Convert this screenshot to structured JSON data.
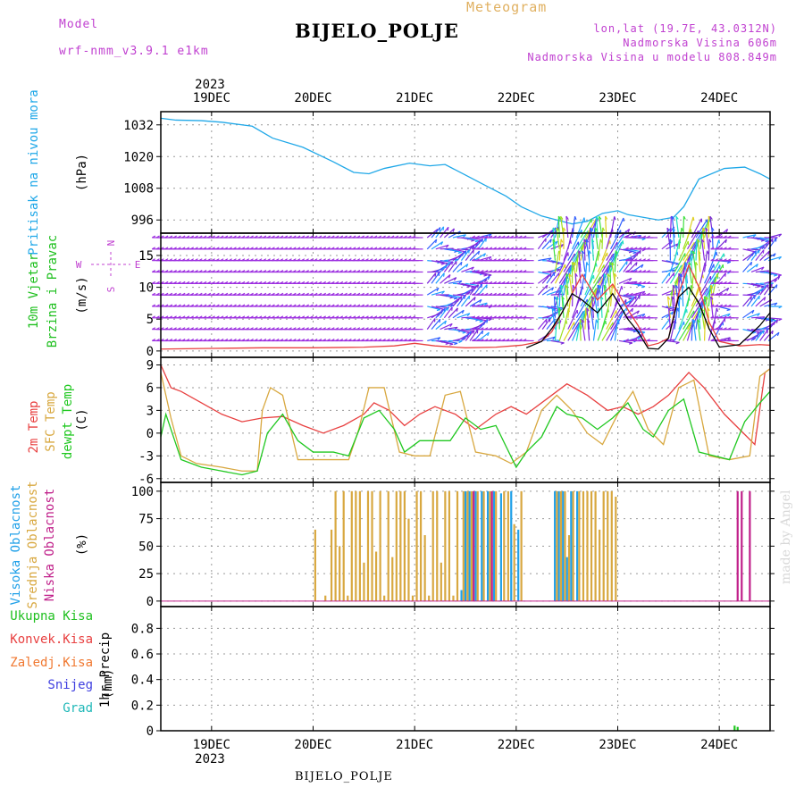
{
  "header": {
    "model_label": "Model",
    "model_name": "wrf-nmm_v3.9.1 e1km",
    "chart_kind": "Meteogram",
    "station": "BIJELO_POLJE",
    "lonlat": "lon,lat (19.7E, 43.0312N)",
    "altitude": "Nadmorska Visina 606m",
    "model_altitude": "Nadmorska Visina u modelu 808.849m",
    "footer_station": "BIJELO_POLJE",
    "watermark": "made by Angel"
  },
  "colors": {
    "magenta": "#c040d0",
    "gold": "#e0b060",
    "pressure": "#20a8e8",
    "wind_title": "#20c020",
    "temp2m": "#e84040",
    "sfc": "#d8a840",
    "dew": "#20c820",
    "cloud_high": "#20a0e8",
    "cloud_mid": "#d8a840",
    "cloud_low": "#c0208a"
  },
  "time_axis": {
    "year": "2023",
    "days": [
      "19DEC",
      "20DEC",
      "21DEC",
      "22DEC",
      "23DEC",
      "24DEC"
    ],
    "day_positions": [
      0.5,
      1.5,
      2.5,
      3.5,
      4.5,
      5.5
    ],
    "range": [
      0,
      6
    ]
  },
  "chart_data": [
    {
      "type": "line",
      "ylabel_title": "Pritisak na nivou mora",
      "ylabel_units": "(hPa)",
      "yticks": [
        996,
        1008,
        1020,
        1032
      ],
      "ylim": [
        991,
        1037
      ],
      "grid": true,
      "series": [
        {
          "color_key": "pressure",
          "x": [
            0,
            0.15,
            0.4,
            0.6,
            0.9,
            1.1,
            1.4,
            1.7,
            1.9,
            2.05,
            2.2,
            2.45,
            2.65,
            2.8,
            3.0,
            3.2,
            3.4,
            3.55,
            3.75,
            3.95,
            4.05,
            4.2,
            4.35,
            4.5,
            4.6,
            4.75,
            4.9,
            5.05,
            5.15,
            5.3,
            5.55,
            5.75,
            5.9,
            6.0
          ],
          "y": [
            1034.5,
            1033.8,
            1033.6,
            1033.0,
            1031.5,
            1027.0,
            1023.5,
            1018.0,
            1014.0,
            1013.5,
            1015.5,
            1017.5,
            1016.5,
            1017.0,
            1013.0,
            1009.0,
            1005.0,
            1001.0,
            997.5,
            995.5,
            994.5,
            995.5,
            998.5,
            999.5,
            998.0,
            997.0,
            996.0,
            997.0,
            1001.0,
            1011.5,
            1015.5,
            1016.0,
            1013.5,
            1011.5
          ]
        }
      ]
    },
    {
      "type": "line",
      "ylabel_title": "10m Vjetar Brzina i Pravac",
      "ylabel_units": "(m/s)",
      "compass": [
        "N",
        "E",
        "S",
        "W"
      ],
      "yticks": [
        0,
        5,
        10,
        15
      ],
      "ylim": [
        -1,
        18.5
      ],
      "grid": true,
      "series": [
        {
          "color_key": "temp2m",
          "name": "",
          "x": [
            0,
            0.5,
            1.0,
            1.5,
            2.0,
            2.3,
            2.5,
            2.7,
            3.0,
            3.3,
            3.55,
            3.75,
            3.85,
            3.95,
            4.05,
            4.15,
            4.3,
            4.45,
            4.6,
            4.7,
            4.8,
            4.9,
            5.0,
            5.1,
            5.2,
            5.3,
            5.4,
            5.5,
            5.7,
            5.9,
            6.0
          ],
          "y": [
            0.3,
            0.4,
            0.5,
            0.5,
            0.6,
            0.8,
            1.2,
            0.8,
            0.5,
            0.6,
            0.9,
            1.5,
            3.0,
            6.0,
            9.0,
            12.0,
            8.0,
            10.5,
            6.5,
            4.0,
            0.8,
            1.2,
            2.0,
            9.0,
            13.5,
            10.0,
            4.5,
            1.5,
            0.8,
            1.0,
            0.9
          ]
        },
        {
          "color_key": "black",
          "name": "",
          "x": [
            3.6,
            3.75,
            3.85,
            3.95,
            4.05,
            4.15,
            4.3,
            4.45,
            4.6,
            4.7,
            4.8,
            4.9,
            5.0,
            5.1,
            5.2,
            5.3,
            5.4,
            5.5,
            5.7,
            5.9,
            6.0
          ],
          "y": [
            0.5,
            1.5,
            3.5,
            6.0,
            9.0,
            8.0,
            6.0,
            9.0,
            5.0,
            3.0,
            0.4,
            0.3,
            2.0,
            8.5,
            10.0,
            7.5,
            3.5,
            0.6,
            1.0,
            4.0,
            6.0
          ]
        }
      ],
      "arrows": {
        "levels": [
          17.8,
          16.0,
          14.2,
          12.4,
          10.6,
          8.8,
          7.0,
          5.2,
          3.4,
          1.6
        ],
        "spacing_days": 0.042
      }
    },
    {
      "type": "line",
      "ylabel_title": [
        "2m Temp",
        "SFC Temp",
        "dewpt Temp"
      ],
      "ylabel_units": "(C)",
      "yticks": [
        -6,
        -3,
        0,
        3,
        6,
        9
      ],
      "ylim": [
        -6.5,
        10
      ],
      "grid": true,
      "series": [
        {
          "name": "2m Temp",
          "color_key": "temp2m",
          "x": [
            0,
            0.1,
            0.2,
            0.4,
            0.6,
            0.8,
            1.0,
            1.2,
            1.4,
            1.6,
            1.8,
            2.0,
            2.1,
            2.25,
            2.4,
            2.55,
            2.7,
            2.9,
            3.1,
            3.3,
            3.45,
            3.6,
            3.8,
            4.0,
            4.2,
            4.4,
            4.55,
            4.7,
            4.85,
            5.0,
            5.2,
            5.35,
            5.55,
            5.7,
            5.85,
            5.95,
            6.0
          ],
          "y": [
            9.0,
            6.0,
            5.5,
            4.0,
            2.5,
            1.5,
            2.0,
            2.2,
            1.0,
            0.0,
            1.0,
            2.5,
            4.0,
            3.0,
            1.0,
            2.5,
            3.5,
            2.5,
            0.5,
            2.5,
            3.5,
            2.5,
            4.5,
            6.5,
            5.0,
            3.0,
            3.5,
            2.5,
            3.5,
            5.0,
            8.0,
            6.0,
            2.5,
            0.5,
            -1.5,
            8.0,
            8.5
          ]
        },
        {
          "name": "SFC Temp",
          "color_key": "sfc",
          "x": [
            0,
            0.1,
            0.2,
            0.35,
            0.6,
            0.8,
            0.95,
            1.0,
            1.08,
            1.2,
            1.35,
            1.5,
            1.7,
            1.85,
            1.95,
            2.05,
            2.2,
            2.35,
            2.5,
            2.65,
            2.8,
            2.95,
            3.1,
            3.3,
            3.45,
            3.6,
            3.75,
            3.9,
            4.05,
            4.2,
            4.35,
            4.5,
            4.65,
            4.8,
            4.95,
            5.1,
            5.25,
            5.4,
            5.6,
            5.8,
            5.9,
            6.0
          ],
          "y": [
            8.0,
            2.0,
            -3.0,
            -4.0,
            -4.5,
            -5.0,
            -5.0,
            3.0,
            6.0,
            5.0,
            -3.5,
            -3.5,
            -3.5,
            -3.5,
            0.5,
            6.0,
            6.0,
            -2.5,
            -3.0,
            -3.0,
            5.0,
            5.5,
            -2.5,
            -3.0,
            -4.0,
            -2.5,
            3.0,
            5.0,
            3.0,
            0.0,
            -1.5,
            2.5,
            5.5,
            0.5,
            -1.5,
            6.0,
            7.0,
            -3.0,
            -3.5,
            -3.0,
            7.5,
            8.5
          ]
        },
        {
          "name": "dewpt Temp",
          "color_key": "dew",
          "x": [
            0,
            0.05,
            0.15,
            0.2,
            0.4,
            0.6,
            0.8,
            0.95,
            1.05,
            1.2,
            1.35,
            1.5,
            1.7,
            1.85,
            2.0,
            2.15,
            2.3,
            2.4,
            2.55,
            2.7,
            2.85,
            3.0,
            3.15,
            3.3,
            3.5,
            3.6,
            3.75,
            3.9,
            4.0,
            4.15,
            4.3,
            4.45,
            4.6,
            4.75,
            4.85,
            5.0,
            5.15,
            5.3,
            5.45,
            5.6,
            5.75,
            5.9,
            6.0
          ],
          "y": [
            -0.5,
            2.5,
            -1.5,
            -3.5,
            -4.5,
            -5.0,
            -5.5,
            -5.0,
            0.0,
            2.5,
            -1.0,
            -2.5,
            -2.5,
            -3.0,
            2.0,
            3.0,
            0.5,
            -2.5,
            -1.0,
            -1.0,
            -1.0,
            2.0,
            0.5,
            1.0,
            -4.5,
            -2.5,
            -0.5,
            3.5,
            2.5,
            2.0,
            0.5,
            2.0,
            4.0,
            0.5,
            -0.5,
            3.0,
            4.5,
            -2.5,
            -3.0,
            -3.5,
            1.5,
            4.0,
            5.5
          ]
        }
      ]
    },
    {
      "type": "bar",
      "ylabel_title": [
        "Visoka Oblacnost",
        "Srednja Oblacnost",
        "Niska Oblacnost"
      ],
      "ylabel_units": "(%)",
      "yticks": [
        0,
        25,
        50,
        75,
        100
      ],
      "ylim": [
        -5,
        108
      ],
      "grid": true,
      "series": [
        {
          "name": "Visoka Oblacnost",
          "color_key": "cloud_high",
          "x": [
            2.96,
            3.0,
            3.04,
            3.1,
            3.16,
            3.22,
            3.28,
            3.35,
            3.45,
            3.52,
            3.88,
            3.92,
            3.96,
            4.0,
            4.04,
            4.1
          ],
          "y": [
            10,
            100,
            100,
            100,
            100,
            100,
            100,
            98,
            100,
            65,
            100,
            100,
            100,
            40,
            100,
            100
          ]
        },
        {
          "name": "Srednja Oblacnost",
          "color_key": "cloud_mid",
          "x": [
            1.52,
            1.62,
            1.68,
            1.72,
            1.76,
            1.8,
            1.84,
            1.88,
            1.92,
            1.96,
            2.0,
            2.04,
            2.08,
            2.12,
            2.16,
            2.2,
            2.24,
            2.28,
            2.32,
            2.36,
            2.4,
            2.44,
            2.48,
            2.52,
            2.56,
            2.6,
            2.64,
            2.68,
            2.72,
            2.76,
            2.8,
            2.84,
            2.88,
            2.92,
            2.98,
            3.02,
            3.06,
            3.12,
            3.18,
            3.24,
            3.3,
            3.38,
            3.42,
            3.48,
            3.55,
            3.9,
            3.94,
            3.98,
            4.02,
            4.06,
            4.12,
            4.16,
            4.2,
            4.24,
            4.28,
            4.32,
            4.36,
            4.4,
            4.44,
            4.48
          ],
          "y": [
            65,
            5,
            65,
            100,
            50,
            100,
            5,
            100,
            100,
            100,
            35,
            100,
            100,
            45,
            100,
            5,
            100,
            40,
            100,
            100,
            100,
            75,
            5,
            100,
            100,
            60,
            5,
            100,
            100,
            35,
            100,
            100,
            5,
            100,
            100,
            100,
            100,
            100,
            100,
            100,
            100,
            100,
            100,
            70,
            100,
            100,
            100,
            100,
            60,
            100,
            100,
            100,
            100,
            100,
            100,
            65,
            100,
            100,
            100,
            95
          ]
        },
        {
          "name": "Niska Oblacnost",
          "color_key": "cloud_low",
          "x": [
            3.08,
            3.26,
            5.68,
            5.72,
            5.8
          ],
          "y": [
            100,
            100,
            100,
            100,
            100
          ]
        }
      ]
    },
    {
      "type": "bar",
      "ylabel_title": "1hr Precip",
      "ylabel_units": "(mm)",
      "yticks": [
        0,
        0.2,
        0.4,
        0.6,
        0.8
      ],
      "ylim": [
        0,
        0.97
      ],
      "grid": true,
      "legend": [
        "Ukupna Kisa",
        "Konvek.Kisa",
        "Zaledj.Kisa",
        "Snijeg",
        "Grad"
      ],
      "legend_colors": [
        "#20c020",
        "#e84040",
        "#f07830",
        "#4040e0",
        "#20b8b8"
      ],
      "series": [
        {
          "name": "Ukupna Kisa",
          "color_key": "dew",
          "x": [
            5.65,
            5.68
          ],
          "y": [
            0.04,
            0.03
          ]
        }
      ]
    }
  ]
}
